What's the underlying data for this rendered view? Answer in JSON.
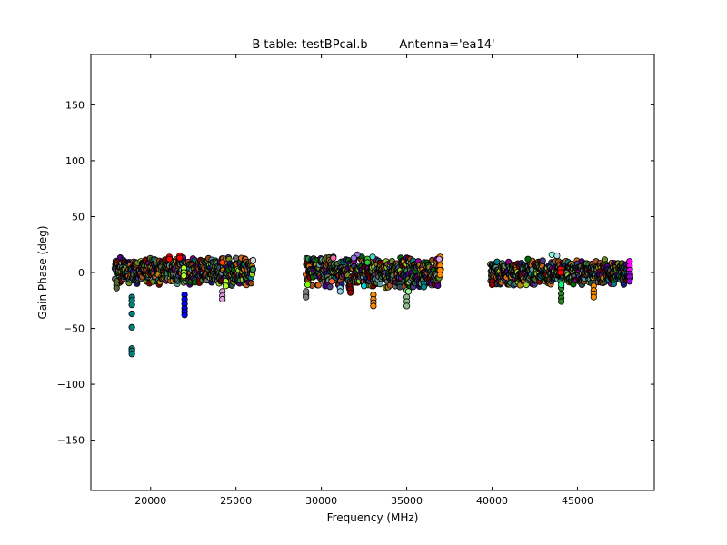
{
  "chart_data": {
    "type": "scatter",
    "title_left": "B table: testBPcal.b",
    "title_right": "Antenna='ea14'",
    "xlabel": "Frequency (MHz)",
    "ylabel": "Gain Phase (deg)",
    "xlim": [
      16500,
      49500
    ],
    "ylim": [
      -195,
      195
    ],
    "xticks": [
      20000,
      25000,
      30000,
      35000,
      40000,
      45000
    ],
    "yticks": [
      150,
      100,
      50,
      0,
      -50,
      -100,
      -150
    ],
    "ytick_labels": [
      "150",
      "100",
      "50",
      "0",
      "−50",
      "−100",
      "−150"
    ],
    "grid": false,
    "marker_edge_color": "#000000",
    "bands": [
      {
        "x_range": [
          17900,
          26000
        ],
        "y_range": [
          -12,
          15
        ]
      },
      {
        "x_range": [
          29100,
          37000
        ],
        "y_range": [
          -15,
          15
        ]
      },
      {
        "x_range": [
          39900,
          48100
        ],
        "y_range": [
          -12,
          12
        ]
      }
    ],
    "series": [
      {
        "color": "#008080",
        "x": [
          18900,
          18900,
          18900,
          18900,
          18900,
          18900,
          18900,
          18900
        ],
        "y": [
          -22,
          -25,
          -29,
          -37,
          -49,
          -68,
          -70,
          -73
        ]
      },
      {
        "color": "#0000ff",
        "x": [
          21990,
          21990,
          21990,
          21990,
          21990,
          21990
        ],
        "y": [
          -20,
          -24,
          -28,
          -32,
          -35,
          -38
        ]
      },
      {
        "color": "#9370db",
        "x": [
          32100,
          31900
        ],
        "y": [
          16,
          13
        ]
      },
      {
        "color": "#dda0dd",
        "x": [
          24200,
          24200,
          24200
        ],
        "y": [
          -17,
          -21,
          -24
        ]
      },
      {
        "color": "#ff8c00",
        "x": [
          33050,
          33050,
          33050,
          33050
        ],
        "y": [
          -20,
          -24,
          -27,
          -30
        ]
      },
      {
        "color": "#8fbc8f",
        "x": [
          35000,
          35000,
          35000,
          35000
        ],
        "y": [
          -16,
          -22,
          -26,
          -30
        ]
      },
      {
        "color": "#228b22",
        "x": [
          44050,
          44050,
          44050,
          44050
        ],
        "y": [
          -14,
          -19,
          -23,
          -26
        ]
      },
      {
        "color": "#ff8c00",
        "x": [
          45950,
          45950,
          45950,
          45950
        ],
        "y": [
          -12,
          -16,
          -19,
          -22
        ]
      },
      {
        "color": "#ff8c00",
        "x": [
          36950,
          36950,
          36950,
          36950,
          36950
        ],
        "y": [
          14,
          10,
          6,
          2,
          -2
        ]
      },
      {
        "color": "#ff00ff",
        "x": [
          48050,
          48050,
          48050
        ],
        "y": [
          10,
          6,
          2
        ]
      },
      {
        "color": "#9400d3",
        "x": [
          48050,
          48050,
          48050
        ],
        "y": [
          -1,
          -4,
          -8
        ]
      },
      {
        "color": "#ff0000",
        "x": [
          21100,
          21100
        ],
        "y": [
          14,
          12
        ]
      },
      {
        "color": "#ff0000",
        "x": [
          21700,
          21700
        ],
        "y": [
          15,
          13
        ]
      },
      {
        "color": "#adff2f",
        "x": [
          21950,
          21950,
          21950
        ],
        "y": [
          4,
          0,
          -3
        ]
      },
      {
        "color": "#adff2f",
        "x": [
          24400,
          24400
        ],
        "y": [
          -8,
          -12
        ]
      },
      {
        "color": "#ff4500",
        "x": [
          24200
        ],
        "y": [
          9
        ]
      },
      {
        "color": "#7cfc00",
        "x": [
          29200
        ],
        "y": [
          -11
        ]
      },
      {
        "color": "#ff69b4",
        "x": [
          30700
        ],
        "y": [
          13
        ]
      },
      {
        "color": "#87ceeb",
        "x": [
          31100,
          31100
        ],
        "y": [
          -14,
          -17
        ]
      },
      {
        "color": "#8b0000",
        "x": [
          31700,
          31700
        ],
        "y": [
          -15,
          -18
        ]
      },
      {
        "color": "#ff6347",
        "x": [
          30600
        ],
        "y": [
          -8
        ]
      },
      {
        "color": "#40e0d0",
        "x": [
          33000
        ],
        "y": [
          14
        ]
      },
      {
        "color": "#32cd32",
        "x": [
          32700,
          32700
        ],
        "y": [
          12,
          9
        ]
      },
      {
        "color": "#00ced1",
        "x": [
          32500
        ],
        "y": [
          -12
        ]
      },
      {
        "color": "#006400",
        "x": [
          42100
        ],
        "y": [
          12
        ]
      },
      {
        "color": "#7fffd4",
        "x": [
          43500
        ],
        "y": [
          16
        ]
      },
      {
        "color": "#b0e0e6",
        "x": [
          43800
        ],
        "y": [
          15
        ]
      },
      {
        "color": "#ff0000",
        "x": [
          44000,
          44000
        ],
        "y": [
          3,
          0
        ]
      },
      {
        "color": "#00ff7f",
        "x": [
          44050
        ],
        "y": [
          -11
        ]
      },
      {
        "color": "#98fb98",
        "x": [
          35100
        ],
        "y": [
          -17
        ]
      },
      {
        "color": "#d3d3d3",
        "x": [
          26000
        ],
        "y": [
          11
        ]
      },
      {
        "color": "#808080",
        "x": [
          29100,
          29100,
          29100
        ],
        "y": [
          -17,
          -20,
          -22
        ]
      },
      {
        "color": "#556b2f",
        "x": [
          18000,
          18000,
          18000
        ],
        "y": [
          -8,
          -11,
          -14
        ]
      },
      {
        "color": "#8b0000",
        "x": [
          40000,
          40000
        ],
        "y": [
          -8,
          -11
        ]
      },
      {
        "color": "#dda0dd",
        "x": [
          36900
        ],
        "y": [
          12
        ]
      },
      {
        "color": "#2f4f4f",
        "x": [
          34600,
          34600
        ],
        "y": [
          -10,
          -13
        ]
      },
      {
        "color": "#008b8b",
        "x": [
          36000,
          36000
        ],
        "y": [
          -10,
          -13
        ]
      }
    ]
  }
}
